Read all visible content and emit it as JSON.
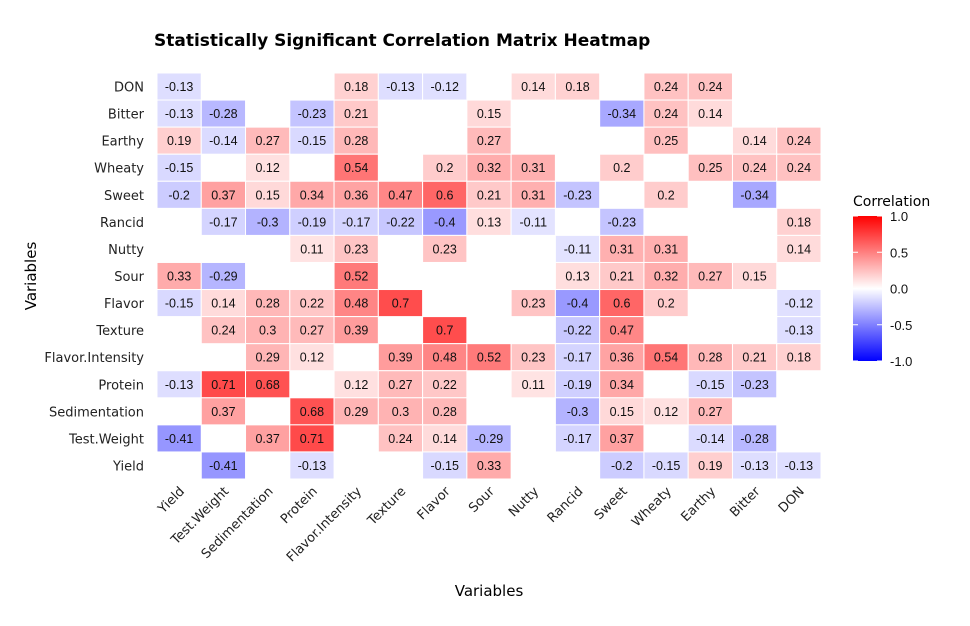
{
  "chart_data": {
    "type": "heatmap",
    "title": "Statistically Significant Correlation Matrix Heatmap",
    "xlabel": "Variables",
    "ylabel": "Variables",
    "x_categories": [
      "Yield",
      "Test.Weight",
      "Sedimentation",
      "Protein",
      "Flavor.Intensity",
      "Texture",
      "Flavor",
      "Sour",
      "Nutty",
      "Rancid",
      "Sweet",
      "Wheaty",
      "Earthy",
      "Bitter",
      "DON"
    ],
    "y_categories_top_to_bottom": [
      "DON",
      "Bitter",
      "Earthy",
      "Wheaty",
      "Sweet",
      "Rancid",
      "Nutty",
      "Sour",
      "Flavor",
      "Texture",
      "Flavor.Intensity",
      "Protein",
      "Sedimentation",
      "Test.Weight",
      "Yield"
    ],
    "values": [
      [
        -0.13,
        null,
        null,
        null,
        0.18,
        -0.13,
        -0.12,
        null,
        0.14,
        0.18,
        null,
        0.24,
        0.24,
        null,
        null
      ],
      [
        -0.13,
        -0.28,
        null,
        -0.23,
        0.21,
        null,
        null,
        0.15,
        null,
        null,
        -0.34,
        0.24,
        0.14,
        null,
        null
      ],
      [
        0.19,
        -0.14,
        0.27,
        -0.15,
        0.28,
        null,
        null,
        0.27,
        null,
        null,
        null,
        0.25,
        null,
        0.14,
        0.24
      ],
      [
        -0.15,
        null,
        0.12,
        null,
        0.54,
        null,
        0.2,
        0.32,
        0.31,
        null,
        0.2,
        null,
        0.25,
        0.24,
        0.24
      ],
      [
        -0.2,
        0.37,
        0.15,
        0.34,
        0.36,
        0.47,
        0.6,
        0.21,
        0.31,
        -0.23,
        null,
        0.2,
        null,
        -0.34,
        null
      ],
      [
        null,
        -0.17,
        -0.3,
        -0.19,
        -0.17,
        -0.22,
        -0.4,
        0.13,
        -0.11,
        null,
        -0.23,
        null,
        null,
        null,
        0.18
      ],
      [
        null,
        null,
        null,
        0.11,
        0.23,
        null,
        0.23,
        null,
        null,
        -0.11,
        0.31,
        0.31,
        null,
        null,
        0.14
      ],
      [
        0.33,
        -0.29,
        null,
        null,
        0.52,
        null,
        null,
        null,
        null,
        0.13,
        0.21,
        0.32,
        0.27,
        0.15,
        null
      ],
      [
        -0.15,
        0.14,
        0.28,
        0.22,
        0.48,
        0.7,
        null,
        null,
        0.23,
        -0.4,
        0.6,
        0.2,
        null,
        null,
        -0.12
      ],
      [
        null,
        0.24,
        0.3,
        0.27,
        0.39,
        null,
        0.7,
        null,
        null,
        -0.22,
        0.47,
        null,
        null,
        null,
        -0.13
      ],
      [
        null,
        null,
        0.29,
        0.12,
        null,
        0.39,
        0.48,
        0.52,
        0.23,
        -0.17,
        0.36,
        0.54,
        0.28,
        0.21,
        0.18
      ],
      [
        -0.13,
        0.71,
        0.68,
        null,
        0.12,
        0.27,
        0.22,
        null,
        0.11,
        -0.19,
        0.34,
        null,
        -0.15,
        -0.23,
        null
      ],
      [
        null,
        0.37,
        null,
        0.68,
        0.29,
        0.3,
        0.28,
        null,
        null,
        -0.3,
        0.15,
        0.12,
        0.27,
        null,
        null
      ],
      [
        -0.41,
        null,
        0.37,
        0.71,
        null,
        0.24,
        0.14,
        -0.29,
        null,
        -0.17,
        0.37,
        null,
        -0.14,
        -0.28,
        null
      ],
      [
        null,
        -0.41,
        null,
        -0.13,
        null,
        null,
        -0.15,
        0.33,
        null,
        null,
        -0.2,
        -0.15,
        0.19,
        -0.13,
        -0.13
      ]
    ],
    "legend": {
      "title": "Correlation",
      "placement": "right",
      "range": [
        -1.0,
        1.0
      ],
      "ticks": [
        "1.0",
        "0.5",
        "0.0",
        "-0.5",
        "-1.0"
      ],
      "tick_values": [
        1.0,
        0.5,
        0.0,
        -0.5,
        -1.0
      ],
      "colors": {
        "low": "#0000ff",
        "mid": "#ffffff",
        "high": "#ff0000"
      }
    },
    "grid": false
  }
}
